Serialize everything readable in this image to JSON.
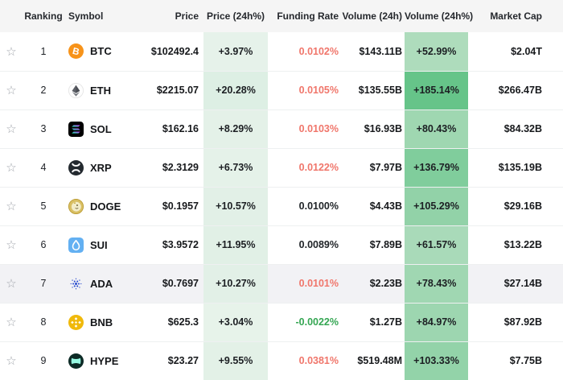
{
  "icons": {
    "favorite_star": "☆"
  },
  "colors": {
    "header_bg": "#f5f5f5",
    "row_highlight_bg": "#f2f2f5",
    "funding_negative_green": "#35a653",
    "funding_positive_red": "#f0766b",
    "funding_neutral_dark": "#212529"
  },
  "table": {
    "columns": {
      "ranking": "Ranking",
      "symbol": "Symbol",
      "price": "Price",
      "price_change": "Price (24h%)",
      "funding": "Funding Rate",
      "volume": "Volume (24h)",
      "volume_change": "Volume (24h%)",
      "market_cap": "Market Cap"
    },
    "rows": [
      {
        "rank": "1",
        "symbol": "BTC",
        "icon": "btc-icon",
        "price": "$102492.4",
        "price_change": "+3.97%",
        "price_change_bg": "#e6f2ea",
        "funding": "0.0102%",
        "funding_color": "#f0766b",
        "volume": "$143.11B",
        "volume_change": "+52.99%",
        "volume_change_bg": "#aedcbc",
        "market_cap": "$2.04T",
        "highlighted": false
      },
      {
        "rank": "2",
        "symbol": "ETH",
        "icon": "eth-icon",
        "price": "$2215.07",
        "price_change": "+20.28%",
        "price_change_bg": "#ddefe4",
        "funding": "0.0105%",
        "funding_color": "#f0766b",
        "volume": "$135.55B",
        "volume_change": "+185.14%",
        "volume_change_bg": "#66c489",
        "market_cap": "$266.47B",
        "highlighted": false
      },
      {
        "rank": "3",
        "symbol": "SOL",
        "icon": "sol-icon",
        "price": "$162.16",
        "price_change": "+8.29%",
        "price_change_bg": "#e4f1e8",
        "funding": "0.0103%",
        "funding_color": "#f0766b",
        "volume": "$16.93B",
        "volume_change": "+80.43%",
        "volume_change_bg": "#9fd7b1",
        "market_cap": "$84.32B",
        "highlighted": false
      },
      {
        "rank": "4",
        "symbol": "XRP",
        "icon": "xrp-icon",
        "price": "$2.3129",
        "price_change": "+6.73%",
        "price_change_bg": "#e5f2e9",
        "funding": "0.0122%",
        "funding_color": "#f0766b",
        "volume": "$7.97B",
        "volume_change": "+136.79%",
        "volume_change_bg": "#80cd9c",
        "market_cap": "$135.19B",
        "highlighted": false
      },
      {
        "rank": "5",
        "symbol": "DOGE",
        "icon": "doge-icon",
        "price": "$0.1957",
        "price_change": "+10.57%",
        "price_change_bg": "#e2f0e7",
        "funding": "0.0100%",
        "funding_color": "#212529",
        "volume": "$4.43B",
        "volume_change": "+105.29%",
        "volume_change_bg": "#92d2a8",
        "market_cap": "$29.16B",
        "highlighted": false
      },
      {
        "rank": "6",
        "symbol": "SUI",
        "icon": "sui-icon",
        "price": "$3.9572",
        "price_change": "+11.95%",
        "price_change_bg": "#e1f0e6",
        "funding": "0.0089%",
        "funding_color": "#212529",
        "volume": "$7.89B",
        "volume_change": "+61.57%",
        "volume_change_bg": "#a9dab9",
        "market_cap": "$13.22B",
        "highlighted": false
      },
      {
        "rank": "7",
        "symbol": "ADA",
        "icon": "ada-icon",
        "price": "$0.7697",
        "price_change": "+10.27%",
        "price_change_bg": "#e2f0e7",
        "funding": "0.0101%",
        "funding_color": "#f0766b",
        "volume": "$2.23B",
        "volume_change": "+78.43%",
        "volume_change_bg": "#a0d7b2",
        "market_cap": "$27.14B",
        "highlighted": true
      },
      {
        "rank": "8",
        "symbol": "BNB",
        "icon": "bnb-icon",
        "price": "$625.3",
        "price_change": "+3.04%",
        "price_change_bg": "#e7f3ea",
        "funding": "-0.0022%",
        "funding_color": "#35a653",
        "volume": "$1.27B",
        "volume_change": "+84.97%",
        "volume_change_bg": "#9dd6b0",
        "market_cap": "$87.92B",
        "highlighted": false
      },
      {
        "rank": "9",
        "symbol": "HYPE",
        "icon": "hype-icon",
        "price": "$23.27",
        "price_change": "+9.55%",
        "price_change_bg": "#e3f1e7",
        "funding": "0.0381%",
        "funding_color": "#f0766b",
        "volume": "$519.48M",
        "volume_change": "+103.33%",
        "volume_change_bg": "#93d3a9",
        "market_cap": "$7.75B",
        "highlighted": false
      }
    ]
  }
}
